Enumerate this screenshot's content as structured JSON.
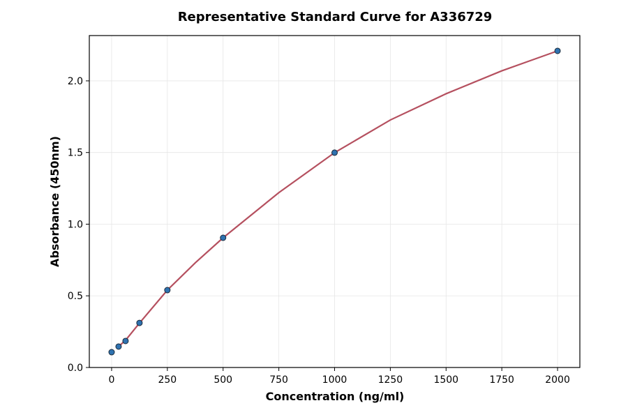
{
  "chart_data": {
    "type": "scatter",
    "title": "Representative Standard Curve for A336729",
    "x_label": "Concentration (ng/ml)",
    "y_label": "Absorbance (450nm)",
    "x": [
      0,
      31.25,
      62.5,
      125,
      250,
      500,
      1000,
      2000
    ],
    "values": [
      0.107,
      0.146,
      0.185,
      0.311,
      0.54,
      0.905,
      1.499,
      2.209
    ],
    "color": "#2f72b0",
    "curve": {
      "color": "#b5505f",
      "x": [
        31.25,
        62.5,
        125,
        250,
        375,
        500,
        750,
        1000,
        1250,
        1500,
        1750,
        2000
      ],
      "values": [
        0.146,
        0.19,
        0.31,
        0.54,
        0.73,
        0.905,
        1.22,
        1.499,
        1.727,
        1.91,
        2.07,
        2.209
      ]
    },
    "xlim": [
      -100,
      2100
    ],
    "ylim": [
      0,
      2.316
    ],
    "xticks": [
      0,
      250,
      500,
      750,
      1000,
      1250,
      1500,
      1750,
      2000
    ],
    "yticks": [
      {
        "value": 0,
        "label": "0.0"
      },
      0.5,
      {
        "value": 1,
        "label": "1.0"
      },
      1.5,
      {
        "value": 2,
        "label": "2.0"
      }
    ],
    "grid": true
  }
}
